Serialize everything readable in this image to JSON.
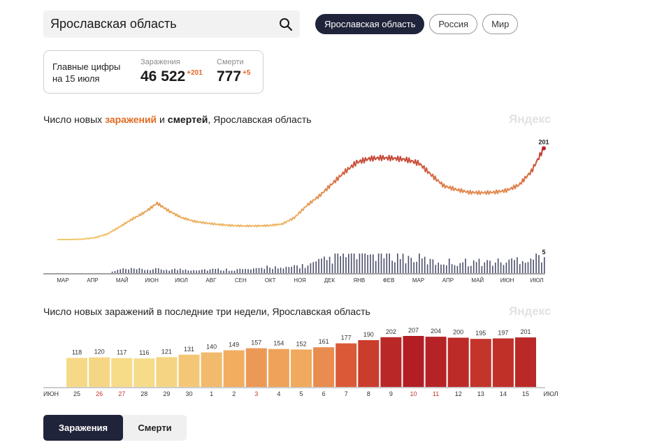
{
  "search": {
    "value": "Ярославская область"
  },
  "region_tabs": [
    "Ярославская область",
    "Россия",
    "Мир"
  ],
  "summary": {
    "heading_line1": "Главные цифры",
    "heading_line2": "на 15 июля",
    "infections_label": "Заражения",
    "infections_value": "46 522",
    "infections_delta": "+201",
    "deaths_label": "Смерти",
    "deaths_value": "777",
    "deaths_delta": "+5"
  },
  "colors": {
    "dark": "#20243a",
    "accent": "#e06a22",
    "infection_low": "#f6dc8a",
    "infection_high": "#b51f24"
  },
  "watermark": "Яндекс",
  "chart_data": [
    {
      "type": "line",
      "title_parts": [
        "Число новых ",
        "заражений",
        " и ",
        "смертей",
        ", Ярославская область"
      ],
      "months": [
        "МАР",
        "АПР",
        "МАЙ",
        "ИЮН",
        "ИЮЛ",
        "АВГ",
        "СЕН",
        "ОКТ",
        "НОЯ",
        "ДЕК",
        "ЯНВ",
        "ФЕВ",
        "МАР",
        "АПР",
        "МАЙ",
        "ИЮН",
        "ИЮЛ"
      ],
      "series": [
        {
          "name": "Заражения",
          "values": [
            0,
            0,
            1,
            4,
            12,
            28,
            45,
            60,
            80,
            62,
            48,
            40,
            36,
            33,
            31,
            30,
            30,
            31,
            34,
            48,
            75,
            96,
            122,
            148,
            170,
            178,
            180,
            179,
            176,
            168,
            142,
            118,
            110,
            104,
            103,
            104,
            108,
            120,
            150,
            201
          ]
        },
        {
          "name": "Смерти",
          "values": [
            0,
            0,
            0,
            0,
            0,
            1,
            1,
            1,
            1,
            1,
            1,
            1,
            1,
            1,
            1,
            1,
            1,
            2,
            1,
            2,
            2,
            3,
            4,
            5,
            5,
            5,
            5,
            5,
            4,
            4,
            3,
            3,
            3,
            3,
            3,
            3,
            3,
            4,
            4,
            5
          ]
        }
      ],
      "end_label_infections": "201",
      "end_label_deaths": "5",
      "ylim": [
        0,
        220
      ]
    },
    {
      "type": "bar",
      "title": "Число новых заражений в последние три недели, Ярославская область",
      "categories": [
        "25",
        "26",
        "27",
        "28",
        "29",
        "30",
        "1",
        "2",
        "3",
        "4",
        "5",
        "6",
        "7",
        "8",
        "9",
        "10",
        "11",
        "12",
        "13",
        "14",
        "15"
      ],
      "values": [
        118,
        120,
        117,
        116,
        121,
        131,
        140,
        149,
        157,
        154,
        152,
        161,
        177,
        190,
        202,
        207,
        204,
        200,
        195,
        197,
        201
      ],
      "weekend_categories": [
        "26",
        "27",
        "3",
        "10",
        "11"
      ],
      "xlabel_left": "ИЮН",
      "xlabel_right": "ИЮЛ",
      "ylim": [
        0,
        215
      ]
    }
  ],
  "bottom_tabs": {
    "infections": "Заражения",
    "deaths": "Смерти"
  }
}
